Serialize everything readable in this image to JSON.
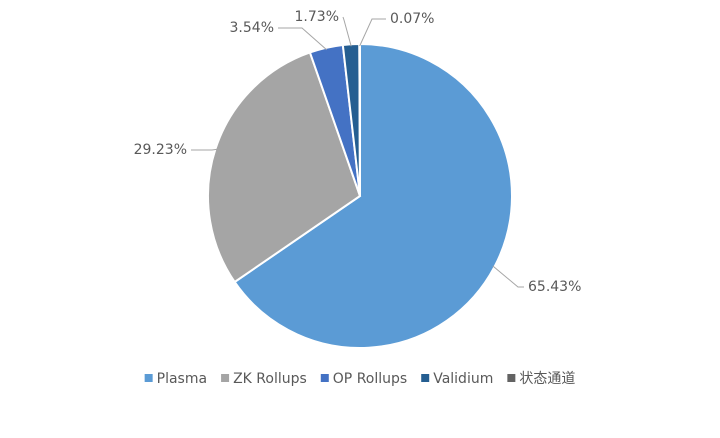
{
  "chart_data": {
    "type": "pie",
    "categories": [
      "Plasma",
      "ZK Rollups",
      "OP Rollups",
      "Validium",
      "状态通道"
    ],
    "values": [
      65.43,
      29.23,
      3.54,
      1.73,
      0.07
    ],
    "value_labels": [
      "65.43%",
      "29.23%",
      "3.54%",
      "1.73%",
      "0.07%"
    ],
    "colors": [
      "#5b9bd5",
      "#a5a5a5",
      "#4472c4",
      "#255e91",
      "#636363"
    ],
    "legend": "bottom"
  }
}
